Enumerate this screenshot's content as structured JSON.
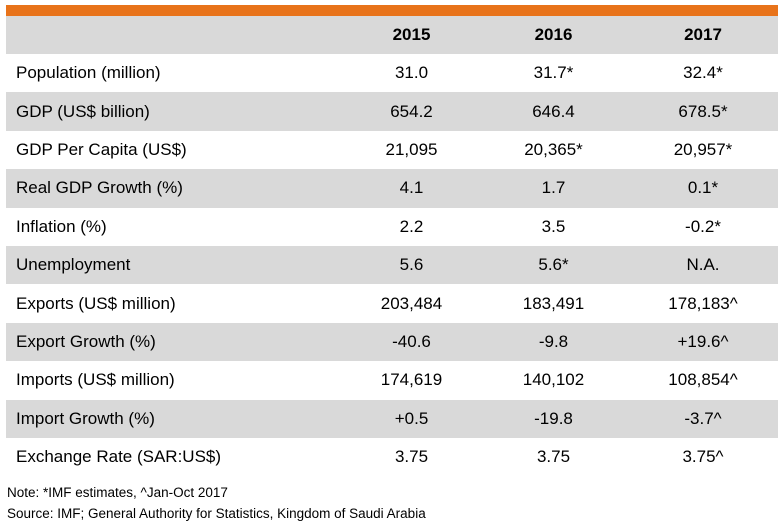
{
  "columns": [
    "",
    "2015",
    "2016",
    "2017"
  ],
  "rows": [
    {
      "label": "Population (million)",
      "v2015": "31.0",
      "v2016": "31.7*",
      "v2017": "32.4*"
    },
    {
      "label": "GDP (US$ billion)",
      "v2015": "654.2",
      "v2016": "646.4",
      "v2017": "678.5*"
    },
    {
      "label": "GDP Per Capita (US$)",
      "v2015": "21,095",
      "v2016": "20,365*",
      "v2017": "20,957*"
    },
    {
      "label": "Real GDP Growth (%)",
      "v2015": "4.1",
      "v2016": "1.7",
      "v2017": "0.1*"
    },
    {
      "label": "Inflation (%)",
      "v2015": "2.2",
      "v2016": "3.5",
      "v2017": "-0.2*"
    },
    {
      "label": "Unemployment",
      "v2015": "5.6",
      "v2016": "5.6*",
      "v2017": "N.A."
    },
    {
      "label": "Exports (US$ million)",
      "v2015": "203,484",
      "v2016": "183,491",
      "v2017": "178,183^"
    },
    {
      "label": "Export Growth (%)",
      "v2015": "-40.6",
      "v2016": "-9.8",
      "v2017": "+19.6^"
    },
    {
      "label": "Imports (US$ million)",
      "v2015": "174,619",
      "v2016": "140,102",
      "v2017": "108,854^"
    },
    {
      "label": "Import Growth (%)",
      "v2015": "+0.5",
      "v2016": "-19.8",
      "v2017": "-3.7^"
    },
    {
      "label": "Exchange Rate (SAR:US$)",
      "v2015": "3.75",
      "v2016": "3.75",
      "v2017": "3.75^"
    }
  ],
  "notes": {
    "note": "Note: *IMF estimates, ^Jan-Oct 2017",
    "source": "Source: IMF; General Authority for Statistics, Kingdom of Saudi Arabia"
  },
  "colors": {
    "accent": "#e8731a",
    "shade": "#d9d9d9"
  }
}
